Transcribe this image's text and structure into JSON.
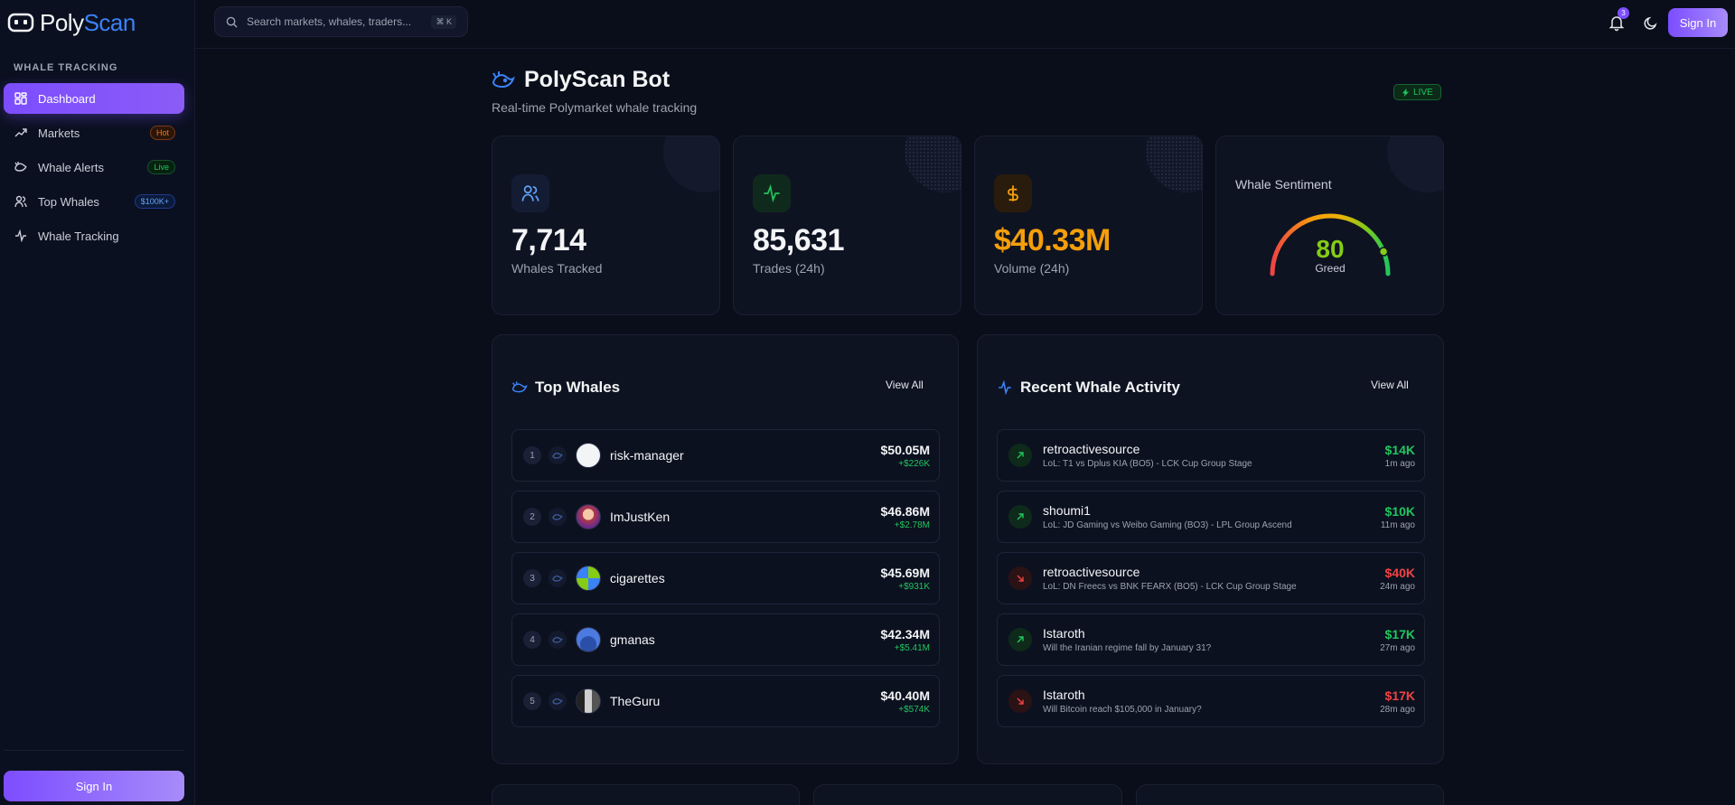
{
  "app": {
    "logo_part1": "Poly",
    "logo_part2": "Scan"
  },
  "sidebar": {
    "section": "WHALE TRACKING",
    "items": [
      {
        "label": "Dashboard",
        "icon": "dashboard-icon",
        "badge": ""
      },
      {
        "label": "Markets",
        "icon": "trending-up-icon",
        "badge": "Hot"
      },
      {
        "label": "Whale Alerts",
        "icon": "whale-icon",
        "badge": "Live"
      },
      {
        "label": "Top Whales",
        "icon": "users-icon",
        "badge": "$100K+"
      },
      {
        "label": "Whale Tracking",
        "icon": "activity-icon",
        "badge": ""
      }
    ],
    "signin": "Sign In"
  },
  "topbar": {
    "search_placeholder": "Search markets, whales, traders...",
    "shortcut": "⌘ K",
    "notifications": "3",
    "signin": "Sign In"
  },
  "header": {
    "title": "PolyScan Bot",
    "subtitle": "Real-time Polymarket whale tracking",
    "live": "LIVE"
  },
  "stats": [
    {
      "value": "7,714",
      "label": "Whales Tracked",
      "color": "#60a5fa"
    },
    {
      "value": "85,631",
      "label": "Trades (24h)",
      "color": "#22c55e"
    },
    {
      "value": "$40.33M",
      "label": "Volume (24h)",
      "color": "#f59e0b"
    }
  ],
  "sentiment": {
    "title": "Whale Sentiment",
    "value": "80",
    "label": "Greed",
    "level": 0.8
  },
  "top_whales": {
    "title": "Top Whales",
    "view_all": "View All",
    "rows": [
      {
        "rank": "1",
        "name": "risk-manager",
        "amount": "$50.05M",
        "pnl": "+$226K"
      },
      {
        "rank": "2",
        "name": "ImJustKen",
        "amount": "$46.86M",
        "pnl": "+$2.78M"
      },
      {
        "rank": "3",
        "name": "cigarettes",
        "amount": "$45.69M",
        "pnl": "+$931K"
      },
      {
        "rank": "4",
        "name": "gmanas",
        "amount": "$42.34M",
        "pnl": "+$5.41M"
      },
      {
        "rank": "5",
        "name": "TheGuru",
        "amount": "$40.40M",
        "pnl": "+$574K"
      }
    ]
  },
  "activity": {
    "title": "Recent Whale Activity",
    "view_all": "View All",
    "rows": [
      {
        "name": "retroactivesource",
        "market": "LoL: T1 vs Dplus KIA (BO5) - LCK Cup Group Stage",
        "amount": "$14K",
        "time": "1m ago",
        "dir": "up"
      },
      {
        "name": "shoumi1",
        "market": "LoL: JD Gaming vs Weibo Gaming (BO3) - LPL Group Ascend",
        "amount": "$10K",
        "time": "11m ago",
        "dir": "up"
      },
      {
        "name": "retroactivesource",
        "market": "LoL: DN Freecs vs BNK FEARX (BO5) - LCK Cup Group Stage",
        "amount": "$40K",
        "time": "24m ago",
        "dir": "down"
      },
      {
        "name": "Istaroth",
        "market": "Will the Iranian regime fall by January 31?",
        "amount": "$17K",
        "time": "27m ago",
        "dir": "up"
      },
      {
        "name": "Istaroth",
        "market": "Will Bitcoin reach $105,000 in January?",
        "amount": "$17K",
        "time": "28m ago",
        "dir": "down"
      }
    ]
  }
}
